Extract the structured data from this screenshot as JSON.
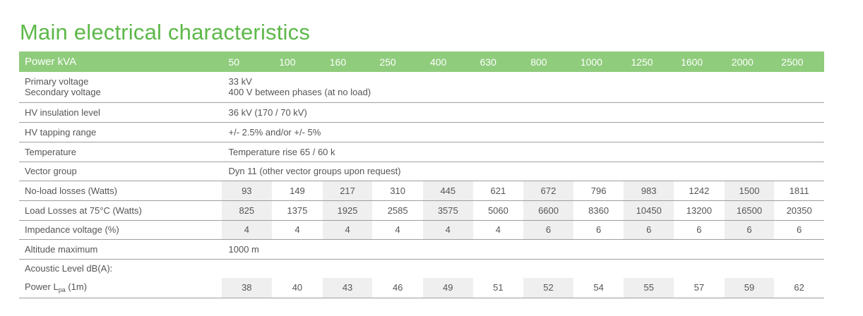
{
  "title": "Main electrical characteristics",
  "header": {
    "label": "Power kVA",
    "ratings": [
      "50",
      "100",
      "160",
      "250",
      "400",
      "630",
      "800",
      "1000",
      "1250",
      "1600",
      "2000",
      "2500"
    ]
  },
  "rows": {
    "primary_voltage_label": "Primary voltage",
    "secondary_voltage_label": "Secondary voltage",
    "primary_voltage_value": "33 kV",
    "secondary_voltage_value": "400 V between phases (at no load)",
    "hv_insulation_label": "HV insulation level",
    "hv_insulation_value": "36 kV  (170 / 70 kV)",
    "hv_tapping_label": "HV tapping range",
    "hv_tapping_value": "+/- 2.5% and/or +/- 5%",
    "temperature_label": "Temperature",
    "temperature_value": "Temperature rise 65 / 60 k",
    "vector_group_label": "Vector group",
    "vector_group_value": "Dyn 11  (other vector groups upon request)",
    "no_load_losses_label": "No-load losses (Watts)",
    "no_load_losses": [
      "93",
      "149",
      "217",
      "310",
      "445",
      "621",
      "672",
      "796",
      "983",
      "1242",
      "1500",
      "1811"
    ],
    "load_losses_label": "Load Losses at 75°C (Watts)",
    "load_losses": [
      "825",
      "1375",
      "1925",
      "2585",
      "3575",
      "5060",
      "6600",
      "8360",
      "10450",
      "13200",
      "16500",
      "20350"
    ],
    "impedance_label": "Impedance voltage (%)",
    "impedance": [
      "4",
      "4",
      "4",
      "4",
      "4",
      "4",
      "6",
      "6",
      "6",
      "6",
      "6",
      "6"
    ],
    "altitude_label": "Altitude maximum",
    "altitude_value": "1000 m",
    "acoustic_label": "Acoustic Level dB(A):",
    "power_lpa_label_prefix": "Power L",
    "power_lpa_label_sub": "pa",
    "power_lpa_label_suffix": " (1m)",
    "power_lpa": [
      "38",
      "40",
      "43",
      "46",
      "49",
      "51",
      "52",
      "54",
      "55",
      "57",
      "59",
      "62"
    ]
  }
}
